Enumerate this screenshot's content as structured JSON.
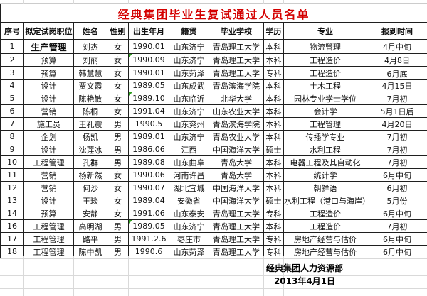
{
  "title": "经典集团毕业生复试通过人员名单",
  "colors": {
    "title_red": "#d40000",
    "error_triangle_green": "#2f9e1f",
    "gridline_gray": "#d9d9d9",
    "border_black": "#1f1f1f"
  },
  "table": {
    "columns": [
      {
        "key": "no",
        "label": "序号"
      },
      {
        "key": "position",
        "label": "拟定试岗职位"
      },
      {
        "key": "name",
        "label": "姓名"
      },
      {
        "key": "gender",
        "label": "性别"
      },
      {
        "key": "birth",
        "label": "出生年月"
      },
      {
        "key": "native",
        "label": "籍贯"
      },
      {
        "key": "school",
        "label": "毕业学校"
      },
      {
        "key": "degree",
        "label": "学历"
      },
      {
        "key": "major",
        "label": "专业"
      },
      {
        "key": "report",
        "label": "报到时间"
      }
    ],
    "rows": [
      {
        "no": "1",
        "position": "生产管理",
        "name": "刘杰",
        "gender": "女",
        "birth": "1990.01",
        "native": "山东济宁",
        "school": "青岛理工大学",
        "degree": "本科",
        "major": "物流管理",
        "report": "4月中旬",
        "green_triangle": false
      },
      {
        "no": "2",
        "position": "预算",
        "name": "刘丽",
        "gender": "女",
        "birth": "1990.09",
        "native": "山东济宁",
        "school": "青岛理工大学",
        "degree": "本科",
        "major": "工程造价",
        "report": "4月8日",
        "green_triangle": true
      },
      {
        "no": "3",
        "position": "预算",
        "name": "韩慧慧",
        "gender": "女",
        "birth": "1990.01",
        "native": "山东菏泽",
        "school": "青岛理工大学",
        "degree": "专科",
        "major": "工程造价",
        "report": "6月底",
        "green_triangle": false
      },
      {
        "no": "4",
        "position": "设计",
        "name": "贾文霞",
        "gender": "女",
        "birth": "1989.05",
        "native": "山东成武",
        "school": "青岛滨海学院",
        "degree": "本科",
        "major": "土木工程",
        "report": "4月15日",
        "green_triangle": false
      },
      {
        "no": "5",
        "position": "设计",
        "name": "陈艳敏",
        "gender": "女",
        "birth": "1989.10",
        "native": "山东临沂",
        "school": "北华大学",
        "degree": "本科",
        "major": "园林专业学士学位",
        "report": "7月初",
        "green_triangle": true
      },
      {
        "no": "6",
        "position": "营销",
        "name": "陈桐",
        "gender": "女",
        "birth": "1991.04",
        "native": "山东济宁",
        "school": "山东农业大学",
        "degree": "本科",
        "major": "会计学",
        "report": "5月1日后",
        "green_triangle": false
      },
      {
        "no": "7",
        "position": "施工员",
        "name": "王孔震",
        "gender": "男",
        "birth": "1990.5",
        "native": "山东兖州",
        "school": "青岛滨海学院",
        "degree": "本科",
        "major": "工程管理",
        "report": "4月20日",
        "green_triangle": false
      },
      {
        "no": "8",
        "position": "企划",
        "name": "杨凯",
        "gender": "男",
        "birth": "1989.01",
        "native": "山东济宁",
        "school": "青岛农业大学",
        "degree": "本科",
        "major": "传播学专业",
        "report": "7月初",
        "green_triangle": false
      },
      {
        "no": "9",
        "position": "设计",
        "name": "沈莲冰",
        "gender": "男",
        "birth": "1986.06",
        "native": "江西",
        "school": "中国海洋大学",
        "degree": "硕士",
        "major": "水利工程",
        "report": "7月初",
        "green_triangle": false
      },
      {
        "no": "10",
        "position": "工程管理",
        "name": "孔群",
        "gender": "男",
        "birth": "1989.08",
        "native": "山东曲阜",
        "school": "青岛大学",
        "degree": "本科",
        "major": "电器工程及其自动化",
        "report": "7月初",
        "green_triangle": false
      },
      {
        "no": "11",
        "position": "营销",
        "name": "杨新然",
        "gender": "女",
        "birth": "1990.06",
        "native": "河南许昌",
        "school": "青岛大学",
        "degree": "本科",
        "major": "统计学",
        "report": "6月中旬",
        "green_triangle": false
      },
      {
        "no": "12",
        "position": "营销",
        "name": "何沙",
        "gender": "女",
        "birth": "1990.07",
        "native": "湖北宜城",
        "school": "中国海洋大学",
        "degree": "本科",
        "major": "朝鲜语",
        "report": "6月初",
        "green_triangle": false
      },
      {
        "no": "13",
        "position": "设计",
        "name": "王琰",
        "gender": "女",
        "birth": "1989.04",
        "native": "安徽省",
        "school": "中国海洋大学",
        "degree": "硕士",
        "major": "水利工程（港口与海岸）",
        "report": "5月份",
        "green_triangle": false
      },
      {
        "no": "14",
        "position": "预算",
        "name": "安静",
        "gender": "女",
        "birth": "1991.06",
        "native": "山东泰安",
        "school": "青岛理工大学",
        "degree": "专科",
        "major": "工程造价",
        "report": "6月中旬",
        "green_triangle": false
      },
      {
        "no": "16",
        "position": "工程管理",
        "name": "高明湖",
        "gender": "男",
        "birth": "1989.05",
        "native": "山东济宁",
        "school": "青岛理工大学",
        "degree": "本科",
        "major": "工程造价",
        "report": "7月初",
        "green_triangle": true
      },
      {
        "no": "17",
        "position": "工程管理",
        "name": "路平",
        "gender": "男",
        "birth": "1991.2.6",
        "native": "枣庄市",
        "school": "青岛理工大学",
        "degree": "专科",
        "major": "房地产经营与估价",
        "report": "6月中旬",
        "green_triangle": false
      },
      {
        "no": "18",
        "position": "工程管理",
        "name": "陈中凯",
        "gender": "男",
        "birth": "1990.6",
        "native": "山东菏泽",
        "school": "青岛理工大学",
        "degree": "专科",
        "major": "房地产经营与估价",
        "report": "6月中旬",
        "green_triangle": false
      }
    ]
  },
  "footer": {
    "dept": "经典集团人力资源部",
    "date": "2013年4月1日"
  }
}
